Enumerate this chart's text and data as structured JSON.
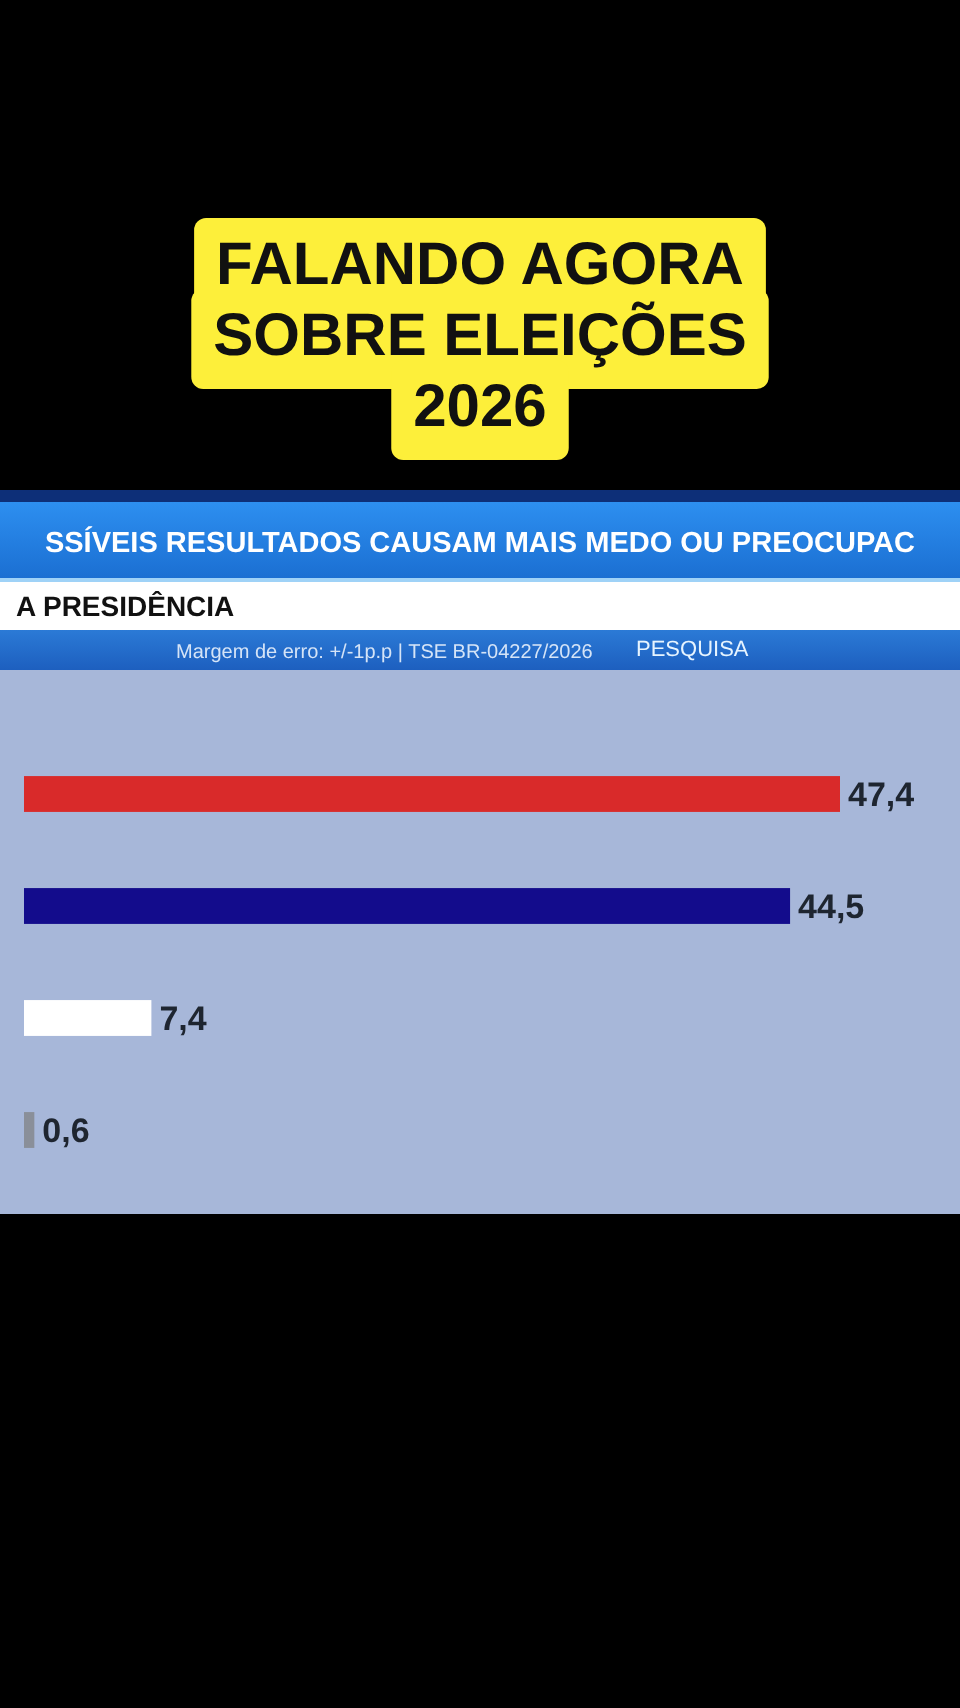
{
  "chart_data": {
    "type": "bar",
    "orientation": "horizontal",
    "title": "FALANDO AGORA SOBRE ELEIÇÕES 2026",
    "subtitle": "SSÍVEIS RESULTADOS CAUSAM MAIS MEDO OU PREOCUPAC",
    "annotations": [
      "A PRESIDÊNCIA",
      "Margem de erro: +/-1p.p | TSE BR-04227/2026",
      "PESQUISA"
    ],
    "categories": [
      null,
      null,
      null,
      null
    ],
    "values": [
      47.4,
      44.5,
      7.4,
      0.6
    ],
    "colors": [
      "#d92a2a",
      "#130c8c",
      "#ffffff",
      "#8a8f99"
    ],
    "value_labels": [
      "47,4",
      "44,5",
      "7,4",
      "0,6"
    ]
  }
}
